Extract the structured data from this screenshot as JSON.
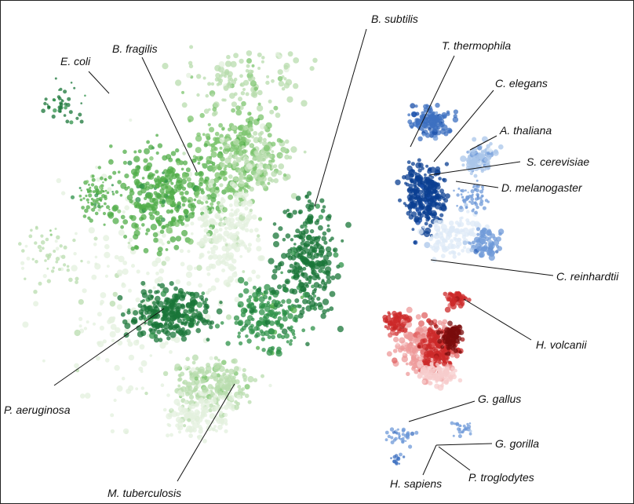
{
  "figure": {
    "labels": {
      "bacteria": {
        "e_coli": "E. coli",
        "b_fragilis": "B. fragilis",
        "b_subtilis": "B. subtilis",
        "p_aeruginosa": "P. aeruginosa",
        "m_tuberculosis": "M. tuberculosis"
      },
      "eukaryota": {
        "t_thermophila": "T. thermophila",
        "c_elegans": "C. elegans",
        "a_thaliana": "A. thaliana",
        "s_cerevisiae": "S. cerevisiae",
        "d_melanogaster": "D. melanogaster",
        "c_reinhardtii": "C. reinhardtii"
      },
      "archaea": {
        "h_volcanii": "H. volcanii"
      },
      "vertebrates": {
        "g_gallus": "G. gallus",
        "g_gorilla": "G. gorilla",
        "h_sapiens": "H. sapiens",
        "p_troglodytes": "P. troglodytes"
      }
    },
    "colors": {
      "bacteria": [
        "#e3f0de",
        "#b8dcae",
        "#7cc46e",
        "#52ae4a",
        "#2e9248",
        "#1a7538"
      ],
      "eukaryota": [
        "#dde9f7",
        "#a9c6ea",
        "#6f9ad8",
        "#3d70c0",
        "#184ea8",
        "#0b3f92"
      ],
      "archaea": [
        "#f7cccc",
        "#ee9a9a",
        "#e06262",
        "#cc2a2a",
        "#a31818",
        "#7a0c0c"
      ]
    }
  }
}
